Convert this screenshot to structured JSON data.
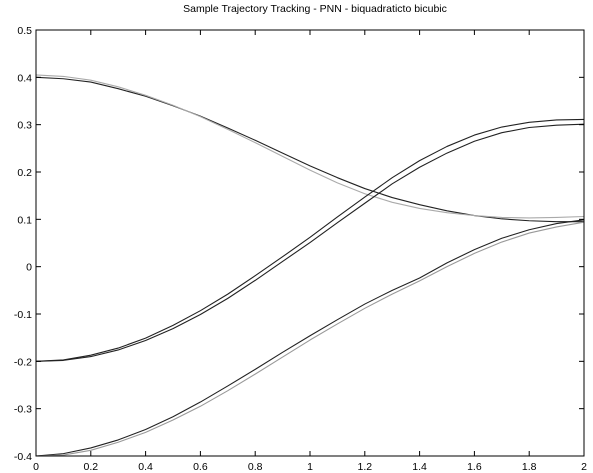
{
  "chart_data": {
    "type": "line",
    "title": "Sample Trajectory Tracking - PNN - biquadraticto bicubic",
    "xlabel": "",
    "ylabel": "",
    "xlim": [
      0,
      2
    ],
    "ylim": [
      -0.4,
      0.5
    ],
    "grid": false,
    "xticks": [
      "0",
      "0.2",
      "0.4",
      "0.6",
      "0.8",
      "1",
      "1.2",
      "1.4",
      "1.6",
      "1.8",
      "2"
    ],
    "yticks": [
      "-0.4",
      "-0.3",
      "-0.2",
      "-0.1",
      "0",
      "0.1",
      "0.2",
      "0.3",
      "0.4",
      "0.5"
    ],
    "x": [
      0,
      0.1,
      0.2,
      0.3,
      0.4,
      0.5,
      0.6,
      0.7,
      0.8,
      0.9,
      1.0,
      1.1,
      1.2,
      1.3,
      1.4,
      1.5,
      1.6,
      1.7,
      1.8,
      1.9,
      2.0
    ],
    "series": [
      {
        "color": "#222222",
        "values": [
          0.4,
          0.397,
          0.39,
          0.376,
          0.36,
          0.34,
          0.318,
          0.293,
          0.267,
          0.24,
          0.213,
          0.188,
          0.165,
          0.146,
          0.131,
          0.118,
          0.108,
          0.101,
          0.097,
          0.095,
          0.095
        ]
      },
      {
        "color": "#aaaaaa",
        "values": [
          0.405,
          0.402,
          0.394,
          0.38,
          0.362,
          0.341,
          0.317,
          0.29,
          0.262,
          0.233,
          0.204,
          0.177,
          0.154,
          0.136,
          0.123,
          0.114,
          0.108,
          0.104,
          0.103,
          0.104,
          0.106
        ]
      },
      {
        "color": "#222222",
        "values": [
          -0.2,
          -0.197,
          -0.187,
          -0.172,
          -0.151,
          -0.124,
          -0.093,
          -0.058,
          -0.019,
          0.021,
          0.062,
          0.105,
          0.147,
          0.188,
          0.224,
          0.254,
          0.278,
          0.295,
          0.305,
          0.31,
          0.311
        ]
      },
      {
        "color": "#222222",
        "values": [
          -0.2,
          -0.198,
          -0.19,
          -0.176,
          -0.156,
          -0.131,
          -0.101,
          -0.067,
          -0.029,
          0.011,
          0.051,
          0.093,
          0.134,
          0.175,
          0.21,
          0.24,
          0.265,
          0.283,
          0.294,
          0.299,
          0.301
        ]
      },
      {
        "color": "#222222",
        "values": [
          -0.4,
          -0.395,
          -0.383,
          -0.366,
          -0.344,
          -0.317,
          -0.286,
          -0.252,
          -0.217,
          -0.181,
          -0.146,
          -0.112,
          -0.079,
          -0.05,
          -0.024,
          0.008,
          0.036,
          0.06,
          0.078,
          0.091,
          0.099
        ]
      },
      {
        "color": "#999999",
        "values": [
          -0.4,
          -0.398,
          -0.388,
          -0.371,
          -0.35,
          -0.324,
          -0.295,
          -0.262,
          -0.227,
          -0.191,
          -0.155,
          -0.121,
          -0.088,
          -0.058,
          -0.03,
          0.0,
          0.028,
          0.052,
          0.071,
          0.084,
          0.094
        ]
      }
    ]
  }
}
